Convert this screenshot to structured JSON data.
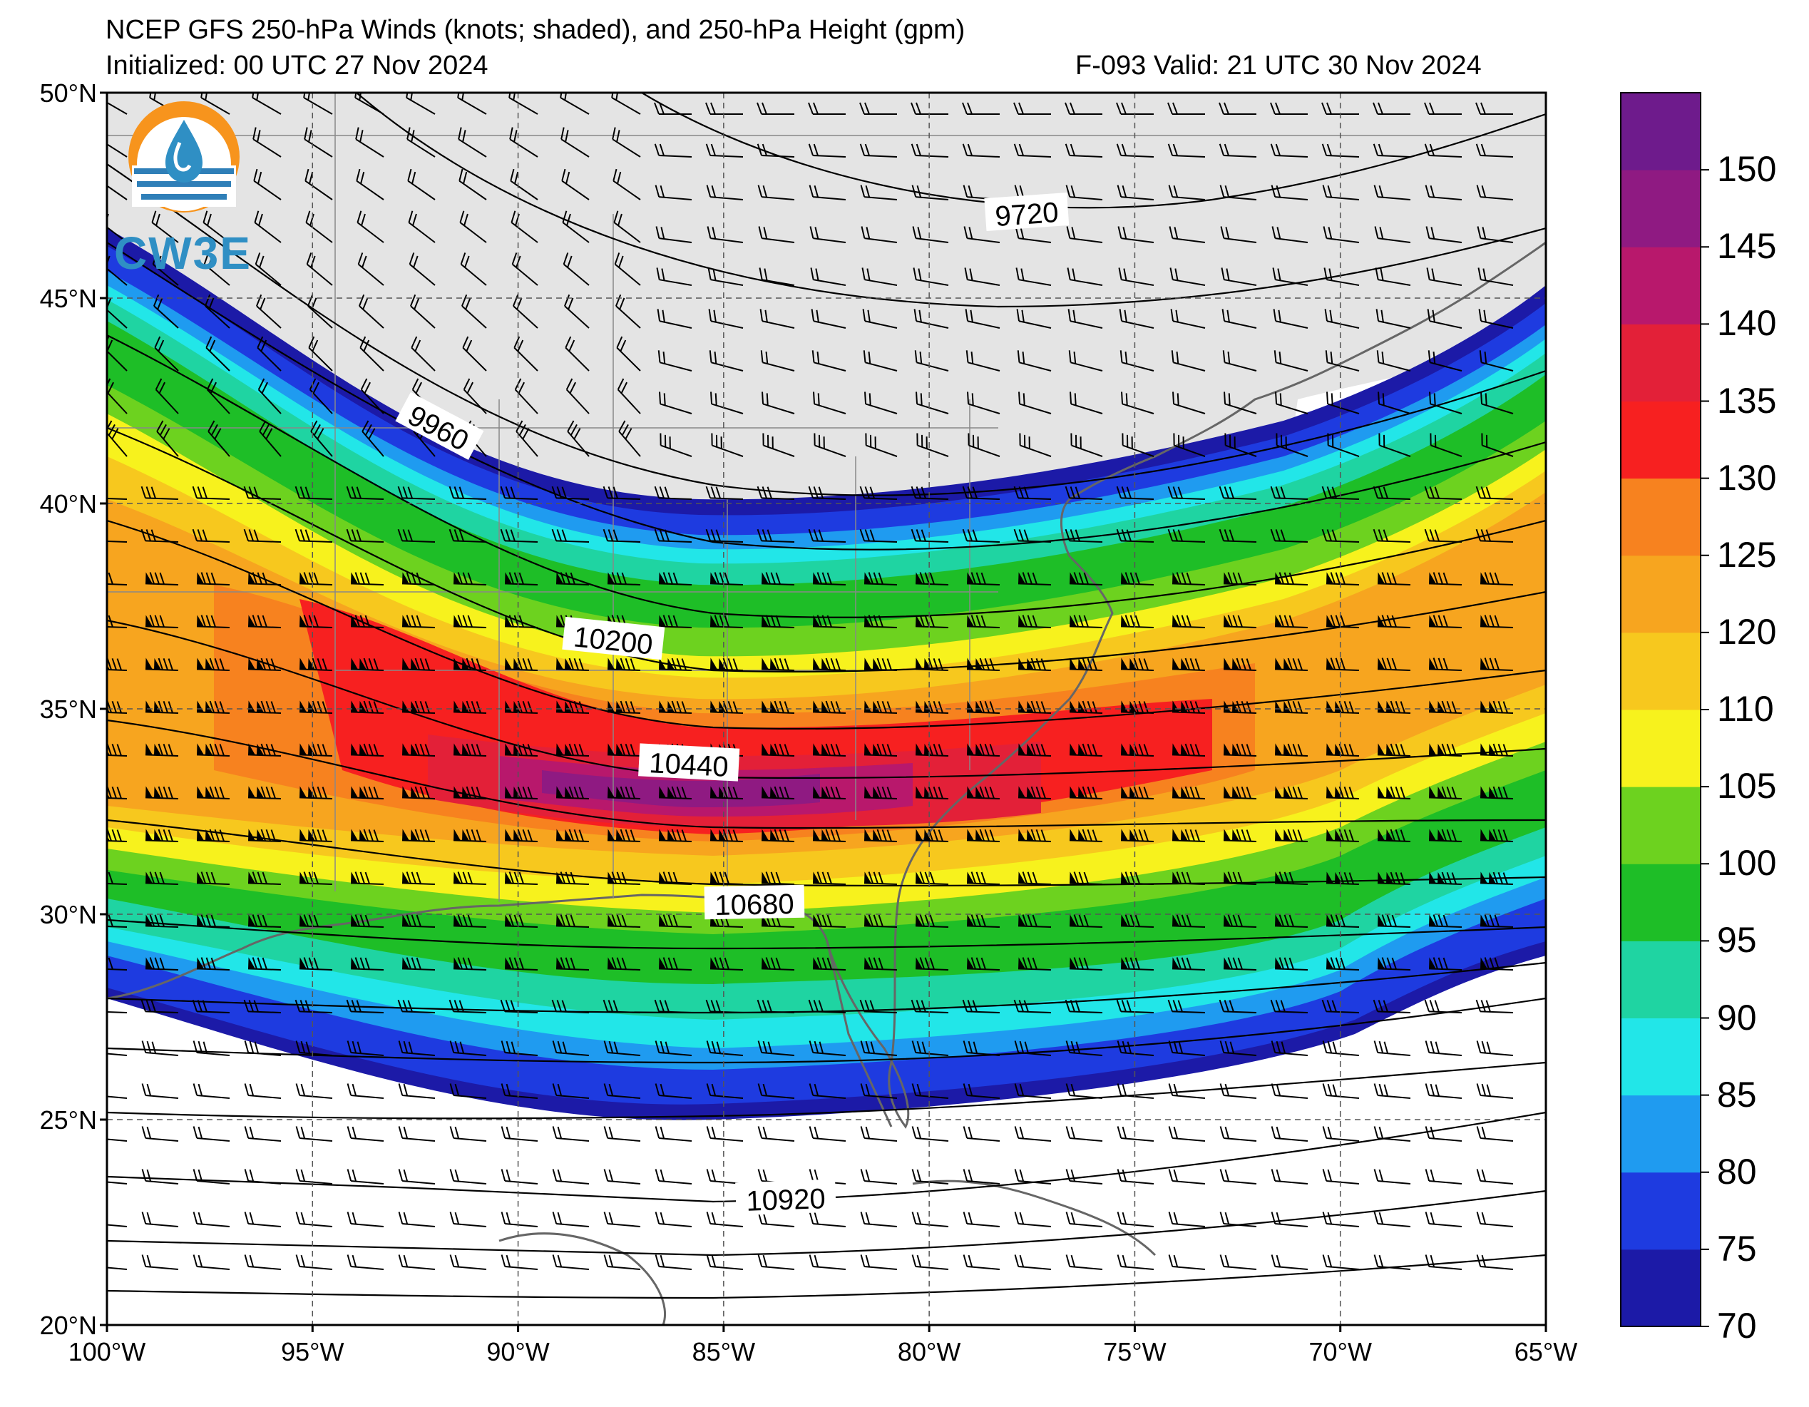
{
  "header": {
    "title": "NCEP GFS 250-hPa Winds (knots; shaded), and 250-hPa Height (gpm)",
    "initialized": "Initialized: 00 UTC 27 Nov 2024",
    "valid": "F-093  Valid: 21 UTC 30 Nov 2024"
  },
  "logo": {
    "text": "CW3E",
    "icon": "cw3e-water-drop-logo"
  },
  "map": {
    "projection": "equirectangular",
    "lon_range": [
      -100,
      -65
    ],
    "lat_range": [
      20,
      50
    ],
    "lat_labels": [
      "50°N",
      "45°N",
      "40°N",
      "35°N",
      "30°N",
      "25°N",
      "20°N"
    ],
    "lon_labels": [
      "100°W",
      "95°W",
      "90°W",
      "85°W",
      "80°W",
      "75°W",
      "70°W",
      "65°W"
    ],
    "height_contours": [
      {
        "label": "9720"
      },
      {
        "label": "9960"
      },
      {
        "label": "10200"
      },
      {
        "label": "10440"
      },
      {
        "label": "10680"
      },
      {
        "label": "10920"
      }
    ]
  },
  "colorbar": {
    "labels": [
      "150",
      "145",
      "140",
      "135",
      "130",
      "125",
      "120",
      "110",
      "105",
      "100",
      "95",
      "90",
      "85",
      "80",
      "75",
      "70"
    ],
    "colors": [
      "#1c1aa7",
      "#1e3be0",
      "#1f9bf0",
      "#22e6e8",
      "#1fd4a2",
      "#1ebe27",
      "#6dd21f",
      "#f7f21d",
      "#f7c81e",
      "#f7a51f",
      "#f7821f",
      "#f72020",
      "#e32038",
      "#b8186c",
      "#8f1a82",
      "#6e1b8c"
    ]
  }
}
